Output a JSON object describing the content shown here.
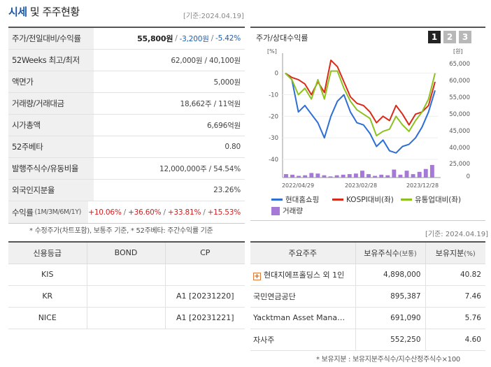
{
  "header": {
    "title_part1": "시세",
    "title_part2": " 및 주주현황",
    "date": "[기준:2024.04.19]"
  },
  "summary": {
    "rows": [
      {
        "label": "주가/전일대비/수익률"
      },
      {
        "label": "52Weeks 최고/최저",
        "value": "62,000원 / 40,100원"
      },
      {
        "label": "액면가",
        "value": "5,000원"
      },
      {
        "label": "거래량/거래대금",
        "value": "18,662주 / 11억원"
      },
      {
        "label": "시가총액",
        "value": "6,696억원"
      },
      {
        "label": "52주베타",
        "value": "0.80"
      },
      {
        "label": "발행주식수/유동비율",
        "value": "12,000,000주 / 54.54%"
      },
      {
        "label": "외국인지분율",
        "value": "23.26%"
      },
      {
        "label": "수익률",
        "label_sub": "(1M/3M/6M/1Y)"
      }
    ],
    "price": "55,800원",
    "change": "-3,200원",
    "change_rate": "-5.42%",
    "returns": [
      "+10.06%",
      "+36.60%",
      "+33.81%",
      "+15.53%"
    ],
    "note": "* 수정주가(차트포함), 보통주 기준, * 52주베타: 주간수익률 기준"
  },
  "chart_panel": {
    "title": "주가/상대수익률",
    "tabs": [
      "1",
      "2",
      "3"
    ],
    "active_tab": "1",
    "date": "[기준: 2024.04.19]"
  },
  "chart_data": {
    "type": "line",
    "left_axis_unit": "[%]",
    "right_axis_unit": "[원]",
    "left_ticks": [
      "0",
      "-10",
      "-20",
      "-30",
      "-40"
    ],
    "right_ticks": [
      "65,000",
      "60,000",
      "55,000",
      "50,000",
      "45,000",
      "40,000",
      "25,000",
      "0"
    ],
    "x_labels": [
      "2022/04/29",
      "2023/02/28",
      "2023/12/28"
    ],
    "ylim_left": [
      -40,
      8
    ],
    "series": [
      {
        "name": "현대홈쇼핑",
        "color": "#2e6fd6",
        "values": [
          0,
          -3,
          -18,
          -15,
          -19,
          -23,
          -30,
          -20,
          -13,
          -10,
          -18,
          -23,
          -24,
          -28,
          -34,
          -31,
          -36,
          -37,
          -34,
          -33,
          -30,
          -25,
          -18,
          -8
        ]
      },
      {
        "name": "KOSPI대비(좌)",
        "color": "#d82a1a",
        "values": [
          0,
          -2,
          -3,
          -5,
          -10,
          -4,
          -9,
          6,
          3,
          -4,
          -11,
          -14,
          -15,
          -18,
          -23,
          -20,
          -22,
          -15,
          -19,
          -24,
          -19,
          -18,
          -15,
          -4
        ]
      },
      {
        "name": "유통업대비(좌)",
        "color": "#8cc21e",
        "values": [
          0,
          -3,
          -10,
          -7,
          -12,
          -3,
          -12,
          1,
          1,
          -7,
          -13,
          -17,
          -19,
          -21,
          -29,
          -27,
          -26,
          -20,
          -24,
          -27,
          -22,
          -18,
          -12,
          0
        ]
      }
    ],
    "volume": {
      "name": "거래량",
      "color": "#a678d8",
      "values": [
        6,
        7,
        5,
        4,
        3,
        6,
        4,
        3,
        8,
        2,
        7,
        3,
        4,
        6,
        2,
        9,
        4,
        2,
        5,
        4,
        6,
        3,
        7,
        9,
        12,
        16,
        6,
        10,
        3,
        8,
        5,
        11,
        4,
        7,
        14,
        3,
        5,
        9,
        12,
        4,
        6,
        8,
        10,
        13,
        15,
        17,
        22,
        8
      ]
    }
  },
  "credit": {
    "headers": [
      "신용등급",
      "BOND",
      "CP"
    ],
    "rows": [
      [
        "KIS",
        "",
        ""
      ],
      [
        "KR",
        "",
        "A1  [20231220]"
      ],
      [
        "NICE",
        "",
        "A1  [20231221]"
      ]
    ]
  },
  "holders": {
    "headers": [
      "주요주주",
      "보유주식수",
      "(보통)",
      "보유지분",
      "(%)"
    ],
    "rows": [
      {
        "name": "현대지에프홀딩스 외 1인",
        "shares": "4,898,000",
        "pct": "40.82"
      },
      {
        "name": "국민연금공단",
        "shares": "895,387",
        "pct": "7.46"
      },
      {
        "name": "Yacktman Asset Mana…",
        "shares": "691,090",
        "pct": "5.76"
      },
      {
        "name": "자사주",
        "shares": "552,250",
        "pct": "4.60"
      }
    ],
    "note": "* 보유지분 : 보유지분주식수/지수산정주식수×100"
  }
}
